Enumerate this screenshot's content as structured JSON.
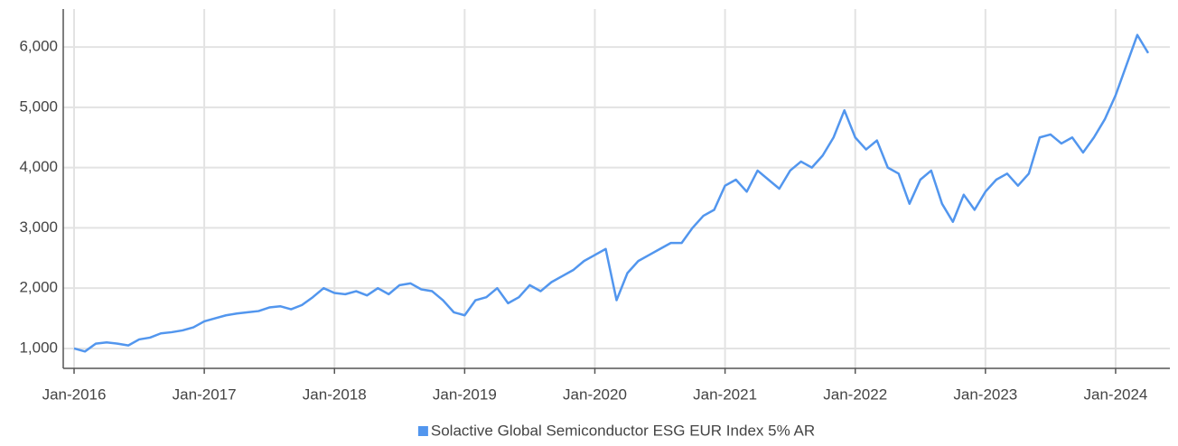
{
  "chart_data": {
    "type": "line",
    "x": [
      "2016-01",
      "2016-02",
      "2016-03",
      "2016-04",
      "2016-05",
      "2016-06",
      "2016-07",
      "2016-08",
      "2016-09",
      "2016-10",
      "2016-11",
      "2016-12",
      "2017-01",
      "2017-02",
      "2017-03",
      "2017-04",
      "2017-05",
      "2017-06",
      "2017-07",
      "2017-08",
      "2017-09",
      "2017-10",
      "2017-11",
      "2017-12",
      "2018-01",
      "2018-02",
      "2018-03",
      "2018-04",
      "2018-05",
      "2018-06",
      "2018-07",
      "2018-08",
      "2018-09",
      "2018-10",
      "2018-11",
      "2018-12",
      "2019-01",
      "2019-02",
      "2019-03",
      "2019-04",
      "2019-05",
      "2019-06",
      "2019-07",
      "2019-08",
      "2019-09",
      "2019-10",
      "2019-11",
      "2019-12",
      "2020-01",
      "2020-02",
      "2020-03",
      "2020-04",
      "2020-05",
      "2020-06",
      "2020-07",
      "2020-08",
      "2020-09",
      "2020-10",
      "2020-11",
      "2020-12",
      "2021-01",
      "2021-02",
      "2021-03",
      "2021-04",
      "2021-05",
      "2021-06",
      "2021-07",
      "2021-08",
      "2021-09",
      "2021-10",
      "2021-11",
      "2021-12",
      "2022-01",
      "2022-02",
      "2022-03",
      "2022-04",
      "2022-05",
      "2022-06",
      "2022-07",
      "2022-08",
      "2022-09",
      "2022-10",
      "2022-11",
      "2022-12",
      "2023-01",
      "2023-02",
      "2023-03",
      "2023-04",
      "2023-05",
      "2023-06",
      "2023-07",
      "2023-08",
      "2023-09",
      "2023-10",
      "2023-11",
      "2023-12",
      "2024-01",
      "2024-02",
      "2024-03",
      "2024-04"
    ],
    "series": [
      {
        "name": "Solactive Global Semiconductor ESG EUR Index 5% AR",
        "color": "#5296ee",
        "values": [
          1000,
          950,
          1080,
          1100,
          1080,
          1050,
          1150,
          1180,
          1250,
          1270,
          1300,
          1350,
          1450,
          1500,
          1550,
          1580,
          1600,
          1620,
          1680,
          1700,
          1650,
          1720,
          1850,
          2000,
          1920,
          1900,
          1950,
          1880,
          2000,
          1900,
          2050,
          2080,
          1980,
          1950,
          1800,
          1600,
          1550,
          1800,
          1850,
          2000,
          1750,
          1850,
          2050,
          1950,
          2100,
          2200,
          2300,
          2450,
          2550,
          2650,
          1800,
          2250,
          2450,
          2550,
          2650,
          2750,
          2750,
          3000,
          3200,
          3300,
          3700,
          3800,
          3600,
          3950,
          3800,
          3650,
          3950,
          4100,
          4000,
          4200,
          4500,
          4950,
          4500,
          4300,
          4450,
          4000,
          3900,
          3400,
          3800,
          3950,
          3400,
          3100,
          3550,
          3300,
          3600,
          3800,
          3900,
          3700,
          3900,
          4500,
          4550,
          4400,
          4500,
          4250,
          4500,
          4800,
          5200,
          5700,
          6200,
          5900
        ]
      }
    ],
    "xlim": [
      "2015-12",
      "2024-06"
    ],
    "xticks": [
      {
        "value": "2016-01",
        "label": "Jan-2016"
      },
      {
        "value": "2017-01",
        "label": "Jan-2017"
      },
      {
        "value": "2018-01",
        "label": "Jan-2018"
      },
      {
        "value": "2019-01",
        "label": "Jan-2019"
      },
      {
        "value": "2020-01",
        "label": "Jan-2020"
      },
      {
        "value": "2021-01",
        "label": "Jan-2021"
      },
      {
        "value": "2022-01",
        "label": "Jan-2022"
      },
      {
        "value": "2023-01",
        "label": "Jan-2023"
      },
      {
        "value": "2024-01",
        "label": "Jan-2024"
      }
    ],
    "ylim": [
      670,
      6630
    ],
    "yticks": [
      {
        "value": 1000,
        "label": "1,000"
      },
      {
        "value": 2000,
        "label": "2,000"
      },
      {
        "value": 3000,
        "label": "3,000"
      },
      {
        "value": 4000,
        "label": "4,000"
      },
      {
        "value": 5000,
        "label": "5,000"
      },
      {
        "value": 6000,
        "label": "6,000"
      }
    ],
    "grid": true,
    "legend": "bottom"
  }
}
